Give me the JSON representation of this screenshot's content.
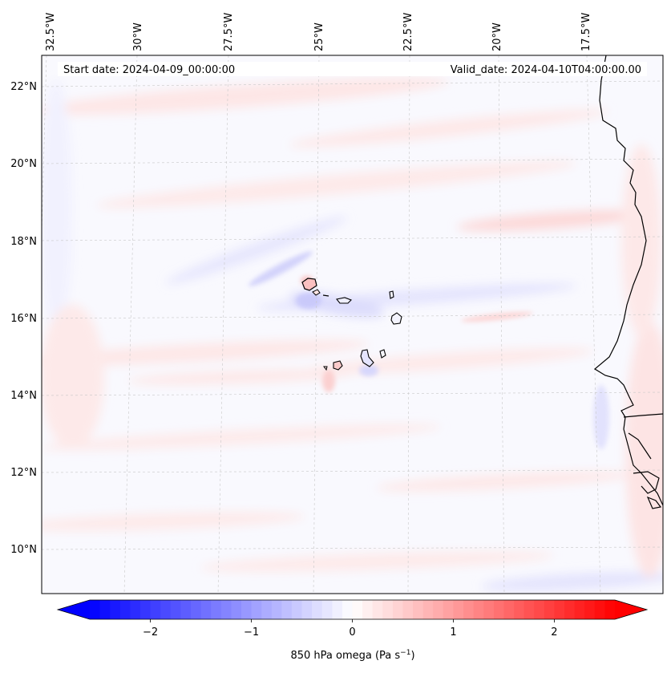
{
  "map": {
    "start_label": "Start date: 2024-04-09_00:00:00",
    "valid_label": "Valid_date: 2024-04-10T04:00:00.00",
    "lon_labels": [
      "32.5°W",
      "30°W",
      "27.5°W",
      "25°W",
      "22.5°W",
      "20°W",
      "17.5°W"
    ],
    "lat_labels": [
      "22°N",
      "20°N",
      "18°N",
      "16°N",
      "14°N",
      "12°N",
      "10°N"
    ],
    "places": [
      "Cape Verde islands",
      "West African coastline"
    ]
  },
  "colorbar": {
    "label": "850 hPa omega (Pa s",
    "label_unit_sup": "−1",
    "label_close": ")",
    "ticks": [
      "−2",
      "−1",
      "0",
      "1",
      "2"
    ],
    "colormap": "bwr",
    "low_color": "#0000ff",
    "mid_color": "#ffffff",
    "high_color": "#ff0000"
  },
  "chart_data": {
    "type": "heatmap",
    "variable": "850 hPa omega",
    "units": "Pa s^-1",
    "vmin": -2.6,
    "vmax": 2.6,
    "colorbar_ticks": [
      -2,
      -1,
      0,
      1,
      2
    ],
    "extend": "both",
    "lon_ticks": [
      -32.5,
      -30,
      -27.5,
      -25,
      -22.5,
      -20,
      -17.5
    ],
    "lat_ticks": [
      22,
      20,
      18,
      16,
      14,
      12,
      10
    ]
  }
}
